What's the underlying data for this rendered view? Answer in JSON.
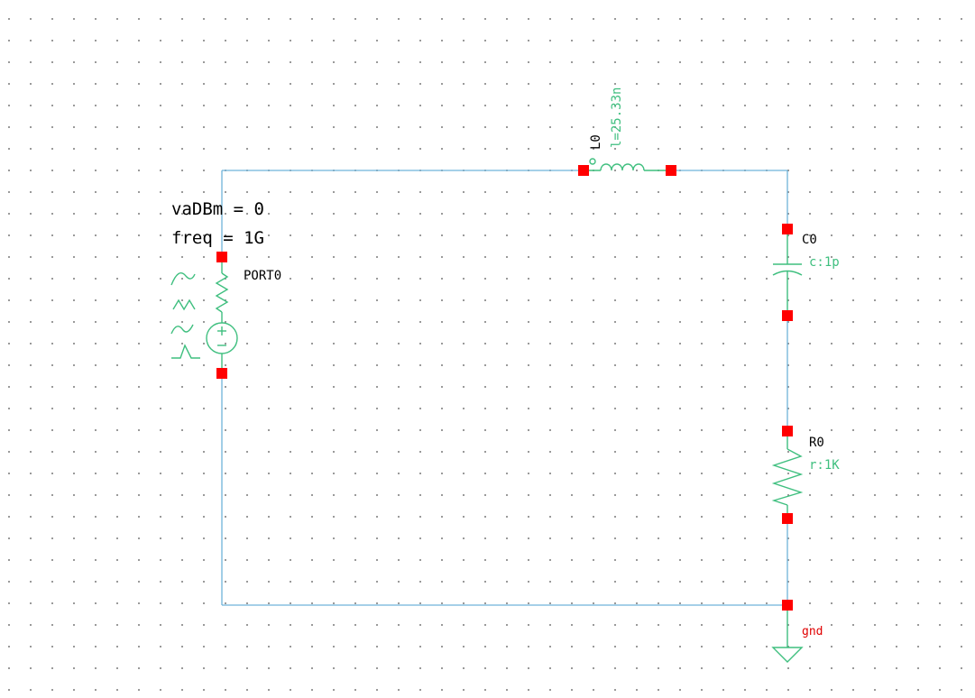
{
  "colors": {
    "wire": "#6fb3d9",
    "symbol": "#3fbf7f",
    "pin": "#ff0000",
    "instance_label": "#000000",
    "net_label": "#e00000"
  },
  "port": {
    "name": "PORT0",
    "params": [
      "vaDBm = 0",
      "freq = 1G"
    ]
  },
  "inductor": {
    "name": "L0",
    "value": "l=25.33n"
  },
  "capacitor": {
    "name": "C0",
    "value": "c:1p"
  },
  "resistor": {
    "name": "R0",
    "value": "r:1K"
  },
  "ground": {
    "net": "gnd"
  }
}
